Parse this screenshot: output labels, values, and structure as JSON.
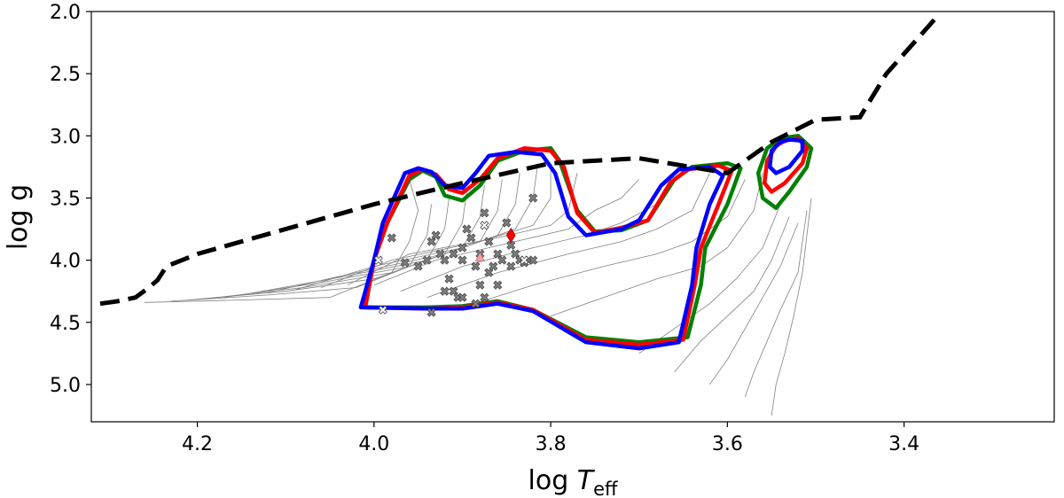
{
  "chart_data": {
    "type": "scatter",
    "title": "",
    "xlabel_main": "log ",
    "xlabel_italic": "T",
    "xlabel_sub": "eff",
    "ylabel": "log g",
    "xlim": [
      4.32,
      3.23
    ],
    "ylim": [
      5.3,
      2.0
    ],
    "x_inverted": true,
    "y_inverted": true,
    "x_ticks": [
      4.2,
      4.0,
      3.8,
      3.6,
      3.4
    ],
    "x_tick_labels": [
      "4.2",
      "4.0",
      "3.8",
      "3.6",
      "3.4"
    ],
    "y_ticks": [
      2.0,
      2.5,
      3.0,
      3.5,
      4.0,
      4.5,
      5.0
    ],
    "y_tick_labels": [
      "2.0",
      "2.5",
      "3.0",
      "3.5",
      "4.0",
      "4.5",
      "5.0"
    ],
    "grid": false,
    "colors": {
      "boundary": "#000000",
      "track": "#808080",
      "contour_green": "#008000",
      "contour_red": "#ff0000",
      "contour_blue": "#0000ff",
      "marker_fill": "#808080",
      "marker_open": "#ffffff",
      "diamond": "#ff0000",
      "triangle": "#f4a0a0"
    },
    "boundary_line": [
      [
        4.31,
        4.35
      ],
      [
        4.29,
        4.33
      ],
      [
        4.27,
        4.3
      ],
      [
        4.255,
        4.22
      ],
      [
        4.245,
        4.16
      ],
      [
        4.235,
        4.05
      ],
      [
        4.2,
        3.95
      ],
      [
        4.1,
        3.75
      ],
      [
        4.0,
        3.55
      ],
      [
        3.9,
        3.38
      ],
      [
        3.8,
        3.22
      ],
      [
        3.75,
        3.2
      ],
      [
        3.7,
        3.18
      ],
      [
        3.6,
        3.3
      ],
      [
        3.55,
        3.05
      ],
      [
        3.5,
        2.87
      ],
      [
        3.45,
        2.85
      ],
      [
        3.42,
        2.5
      ],
      [
        3.36,
        2.02
      ]
    ],
    "contours": [
      {
        "color": "contour_green",
        "points": [
          [
            4.01,
            4.38
          ],
          [
            4.0,
            4.0
          ],
          [
            3.985,
            3.7
          ],
          [
            3.96,
            3.35
          ],
          [
            3.945,
            3.28
          ],
          [
            3.93,
            3.33
          ],
          [
            3.92,
            3.48
          ],
          [
            3.9,
            3.52
          ],
          [
            3.88,
            3.4
          ],
          [
            3.86,
            3.2
          ],
          [
            3.83,
            3.12
          ],
          [
            3.8,
            3.1
          ],
          [
            3.79,
            3.2
          ],
          [
            3.77,
            3.6
          ],
          [
            3.75,
            3.77
          ],
          [
            3.72,
            3.76
          ],
          [
            3.69,
            3.68
          ],
          [
            3.66,
            3.35
          ],
          [
            3.64,
            3.25
          ],
          [
            3.6,
            3.22
          ],
          [
            3.585,
            3.26
          ],
          [
            3.6,
            3.55
          ],
          [
            3.625,
            3.9
          ],
          [
            3.63,
            4.2
          ],
          [
            3.645,
            4.62
          ],
          [
            3.7,
            4.66
          ],
          [
            3.76,
            4.62
          ],
          [
            3.82,
            4.4
          ],
          [
            3.86,
            4.33
          ],
          [
            3.9,
            4.37
          ],
          [
            3.94,
            4.38
          ],
          [
            4.01,
            4.38
          ]
        ]
      },
      {
        "color": "contour_red",
        "points": [
          [
            4.01,
            4.38
          ],
          [
            4.0,
            4.0
          ],
          [
            3.985,
            3.7
          ],
          [
            3.96,
            3.32
          ],
          [
            3.945,
            3.27
          ],
          [
            3.93,
            3.31
          ],
          [
            3.915,
            3.43
          ],
          [
            3.9,
            3.46
          ],
          [
            3.88,
            3.35
          ],
          [
            3.86,
            3.18
          ],
          [
            3.83,
            3.1
          ],
          [
            3.8,
            3.12
          ],
          [
            3.785,
            3.25
          ],
          [
            3.77,
            3.62
          ],
          [
            3.75,
            3.78
          ],
          [
            3.72,
            3.74
          ],
          [
            3.69,
            3.68
          ],
          [
            3.665,
            3.38
          ],
          [
            3.645,
            3.27
          ],
          [
            3.61,
            3.24
          ],
          [
            3.595,
            3.28
          ],
          [
            3.61,
            3.55
          ],
          [
            3.63,
            3.9
          ],
          [
            3.637,
            4.2
          ],
          [
            3.65,
            4.64
          ],
          [
            3.7,
            4.68
          ],
          [
            3.76,
            4.64
          ],
          [
            3.82,
            4.4
          ],
          [
            3.86,
            4.34
          ],
          [
            3.9,
            4.38
          ],
          [
            3.94,
            4.39
          ],
          [
            4.01,
            4.38
          ]
        ]
      },
      {
        "color": "contour_blue",
        "points": [
          [
            4.015,
            4.38
          ],
          [
            4.0,
            4.0
          ],
          [
            3.99,
            3.7
          ],
          [
            3.965,
            3.3
          ],
          [
            3.95,
            3.26
          ],
          [
            3.935,
            3.29
          ],
          [
            3.92,
            3.4
          ],
          [
            3.9,
            3.42
          ],
          [
            3.885,
            3.3
          ],
          [
            3.87,
            3.16
          ],
          [
            3.84,
            3.13
          ],
          [
            3.81,
            3.15
          ],
          [
            3.795,
            3.3
          ],
          [
            3.78,
            3.65
          ],
          [
            3.76,
            3.8
          ],
          [
            3.72,
            3.75
          ],
          [
            3.7,
            3.68
          ],
          [
            3.675,
            3.4
          ],
          [
            3.655,
            3.27
          ],
          [
            3.62,
            3.25
          ],
          [
            3.605,
            3.32
          ],
          [
            3.62,
            3.55
          ],
          [
            3.635,
            3.9
          ],
          [
            3.64,
            4.2
          ],
          [
            3.655,
            4.66
          ],
          [
            3.7,
            4.71
          ],
          [
            3.76,
            4.66
          ],
          [
            3.82,
            4.41
          ],
          [
            3.86,
            4.35
          ],
          [
            3.9,
            4.39
          ],
          [
            3.94,
            4.39
          ],
          [
            4.015,
            4.38
          ]
        ]
      },
      {
        "color": "contour_green",
        "points": [
          [
            3.54,
            3.02
          ],
          [
            3.52,
            3.0
          ],
          [
            3.505,
            3.1
          ],
          [
            3.51,
            3.25
          ],
          [
            3.53,
            3.45
          ],
          [
            3.545,
            3.58
          ],
          [
            3.56,
            3.5
          ],
          [
            3.565,
            3.3
          ],
          [
            3.555,
            3.1
          ],
          [
            3.54,
            3.02
          ]
        ]
      },
      {
        "color": "contour_red",
        "points": [
          [
            3.535,
            3.04
          ],
          [
            3.52,
            3.02
          ],
          [
            3.51,
            3.1
          ],
          [
            3.515,
            3.22
          ],
          [
            3.535,
            3.38
          ],
          [
            3.55,
            3.45
          ],
          [
            3.558,
            3.38
          ],
          [
            3.555,
            3.2
          ],
          [
            3.545,
            3.08
          ],
          [
            3.535,
            3.04
          ]
        ]
      },
      {
        "color": "contour_blue",
        "points": [
          [
            3.53,
            3.03
          ],
          [
            3.515,
            3.04
          ],
          [
            3.515,
            3.12
          ],
          [
            3.53,
            3.25
          ],
          [
            3.545,
            3.3
          ],
          [
            3.552,
            3.25
          ],
          [
            3.55,
            3.12
          ],
          [
            3.54,
            3.05
          ],
          [
            3.53,
            3.03
          ]
        ]
      }
    ],
    "stars_filled": [
      [
        3.98,
        3.82
      ],
      [
        3.965,
        4.02
      ],
      [
        3.95,
        4.05
      ],
      [
        3.94,
        4.0
      ],
      [
        3.935,
        3.85
      ],
      [
        3.93,
        3.8
      ],
      [
        3.925,
        3.95
      ],
      [
        3.92,
        4.0
      ],
      [
        3.915,
        4.15
      ],
      [
        3.91,
        4.25
      ],
      [
        3.905,
        4.3
      ],
      [
        3.9,
        3.9
      ],
      [
        3.9,
        4.0
      ],
      [
        3.895,
        3.75
      ],
      [
        3.89,
        3.82
      ],
      [
        3.885,
        4.05
      ],
      [
        3.88,
        3.95
      ],
      [
        3.875,
        3.62
      ],
      [
        3.87,
        4.1
      ],
      [
        3.865,
        4.05
      ],
      [
        3.86,
        3.95
      ],
      [
        3.855,
        4.0
      ],
      [
        3.85,
        3.7
      ],
      [
        3.845,
        4.05
      ],
      [
        3.84,
        3.95
      ],
      [
        3.835,
        4.0
      ],
      [
        3.83,
        4.02
      ],
      [
        3.825,
        4.0
      ],
      [
        3.82,
        3.5
      ],
      [
        3.82,
        4.0
      ],
      [
        3.9,
        4.3
      ],
      [
        3.885,
        4.35
      ],
      [
        3.875,
        4.3
      ],
      [
        3.86,
        4.2
      ],
      [
        3.935,
        4.42
      ],
      [
        3.92,
        4.25
      ],
      [
        3.91,
        3.95
      ],
      [
        3.87,
        3.85
      ],
      [
        3.88,
        4.2
      ],
      [
        3.845,
        3.88
      ]
    ],
    "stars_open": [
      [
        3.995,
        4.0
      ],
      [
        3.99,
        4.4
      ],
      [
        3.83,
        4.0
      ],
      [
        3.875,
        3.72
      ]
    ],
    "diamond": [
      [
        3.845,
        3.8
      ]
    ],
    "triangle": [
      [
        3.88,
        3.98
      ]
    ],
    "tracks": [
      [
        [
          4.26,
          4.34
        ],
        [
          4.15,
          4.32
        ],
        [
          4.05,
          4.3
        ],
        [
          3.98,
          4.1
        ],
        [
          3.96,
          3.85
        ],
        [
          3.95,
          3.6
        ],
        [
          3.96,
          3.35
        ]
      ],
      [
        [
          4.23,
          4.33
        ],
        [
          4.12,
          4.28
        ],
        [
          4.02,
          4.22
        ],
        [
          3.96,
          4.05
        ],
        [
          3.94,
          3.8
        ],
        [
          3.935,
          3.55
        ]
      ],
      [
        [
          4.21,
          4.32
        ],
        [
          4.1,
          4.25
        ],
        [
          4.0,
          4.15
        ],
        [
          3.94,
          4.0
        ],
        [
          3.92,
          3.75
        ],
        [
          3.915,
          3.5
        ]
      ],
      [
        [
          4.19,
          4.31
        ],
        [
          4.08,
          4.22
        ],
        [
          3.98,
          4.1
        ],
        [
          3.92,
          3.95
        ],
        [
          3.9,
          3.7
        ],
        [
          3.895,
          3.45
        ]
      ],
      [
        [
          4.17,
          4.3
        ],
        [
          4.06,
          4.18
        ],
        [
          3.96,
          4.05
        ],
        [
          3.9,
          3.9
        ],
        [
          3.88,
          3.65
        ],
        [
          3.875,
          3.4
        ]
      ],
      [
        [
          4.15,
          4.28
        ],
        [
          4.04,
          4.14
        ],
        [
          3.94,
          4.0
        ],
        [
          3.88,
          3.85
        ],
        [
          3.86,
          3.6
        ],
        [
          3.855,
          3.35
        ]
      ],
      [
        [
          4.12,
          4.26
        ],
        [
          4.02,
          4.1
        ],
        [
          3.92,
          3.95
        ],
        [
          3.86,
          3.8
        ],
        [
          3.84,
          3.55
        ],
        [
          3.835,
          3.3
        ]
      ],
      [
        [
          4.09,
          4.24
        ],
        [
          4.0,
          4.05
        ],
        [
          3.9,
          3.9
        ],
        [
          3.84,
          3.75
        ],
        [
          3.82,
          3.5
        ],
        [
          3.815,
          3.25
        ]
      ],
      [
        [
          4.06,
          4.22
        ],
        [
          3.98,
          4.0
        ],
        [
          3.88,
          3.85
        ],
        [
          3.82,
          3.72
        ],
        [
          3.8,
          3.5
        ],
        [
          3.8,
          3.22
        ]
      ],
      [
        [
          4.03,
          4.2
        ],
        [
          3.96,
          3.95
        ],
        [
          3.86,
          3.82
        ],
        [
          3.8,
          3.72
        ],
        [
          3.78,
          3.6
        ],
        [
          3.77,
          3.3
        ]
      ],
      [
        [
          4.0,
          4.2
        ],
        [
          3.93,
          4.0
        ],
        [
          3.84,
          3.85
        ],
        [
          3.78,
          3.75
        ],
        [
          3.75,
          3.6
        ],
        [
          3.72,
          3.5
        ],
        [
          3.7,
          3.35
        ]
      ],
      [
        [
          3.97,
          4.25
        ],
        [
          3.9,
          4.05
        ],
        [
          3.82,
          3.9
        ],
        [
          3.76,
          3.8
        ],
        [
          3.72,
          3.7
        ],
        [
          3.68,
          3.55
        ],
        [
          3.66,
          3.3
        ]
      ],
      [
        [
          3.94,
          4.3
        ],
        [
          3.86,
          4.1
        ],
        [
          3.78,
          3.95
        ],
        [
          3.72,
          3.85
        ],
        [
          3.68,
          3.75
        ],
        [
          3.64,
          3.6
        ],
        [
          3.62,
          3.3
        ]
      ],
      [
        [
          3.9,
          4.38
        ],
        [
          3.82,
          4.2
        ],
        [
          3.74,
          4.05
        ],
        [
          3.68,
          3.95
        ],
        [
          3.64,
          3.85
        ],
        [
          3.6,
          3.65
        ],
        [
          3.58,
          3.35
        ]
      ],
      [
        [
          3.8,
          4.45
        ],
        [
          3.74,
          4.3
        ],
        [
          3.68,
          4.15
        ],
        [
          3.63,
          4.05
        ],
        [
          3.6,
          3.9
        ],
        [
          3.57,
          3.6
        ],
        [
          3.56,
          3.3
        ]
      ],
      [
        [
          3.7,
          4.75
        ],
        [
          3.66,
          4.55
        ],
        [
          3.62,
          4.35
        ],
        [
          3.59,
          4.15
        ],
        [
          3.56,
          3.9
        ],
        [
          3.54,
          3.55
        ]
      ],
      [
        [
          3.66,
          4.9
        ],
        [
          3.63,
          4.65
        ],
        [
          3.6,
          4.45
        ],
        [
          3.57,
          4.25
        ],
        [
          3.55,
          4.0
        ],
        [
          3.53,
          3.65
        ]
      ],
      [
        [
          3.62,
          5.0
        ],
        [
          3.6,
          4.8
        ],
        [
          3.58,
          4.55
        ],
        [
          3.56,
          4.3
        ],
        [
          3.54,
          4.05
        ],
        [
          3.52,
          3.7
        ]
      ],
      [
        [
          3.58,
          5.1
        ],
        [
          3.57,
          4.9
        ],
        [
          3.555,
          4.65
        ],
        [
          3.54,
          4.4
        ],
        [
          3.52,
          4.1
        ],
        [
          3.51,
          3.6
        ]
      ],
      [
        [
          3.55,
          5.25
        ],
        [
          3.545,
          5.0
        ],
        [
          3.535,
          4.75
        ],
        [
          3.525,
          4.45
        ],
        [
          3.515,
          4.1
        ],
        [
          3.505,
          3.5
        ]
      ]
    ]
  }
}
